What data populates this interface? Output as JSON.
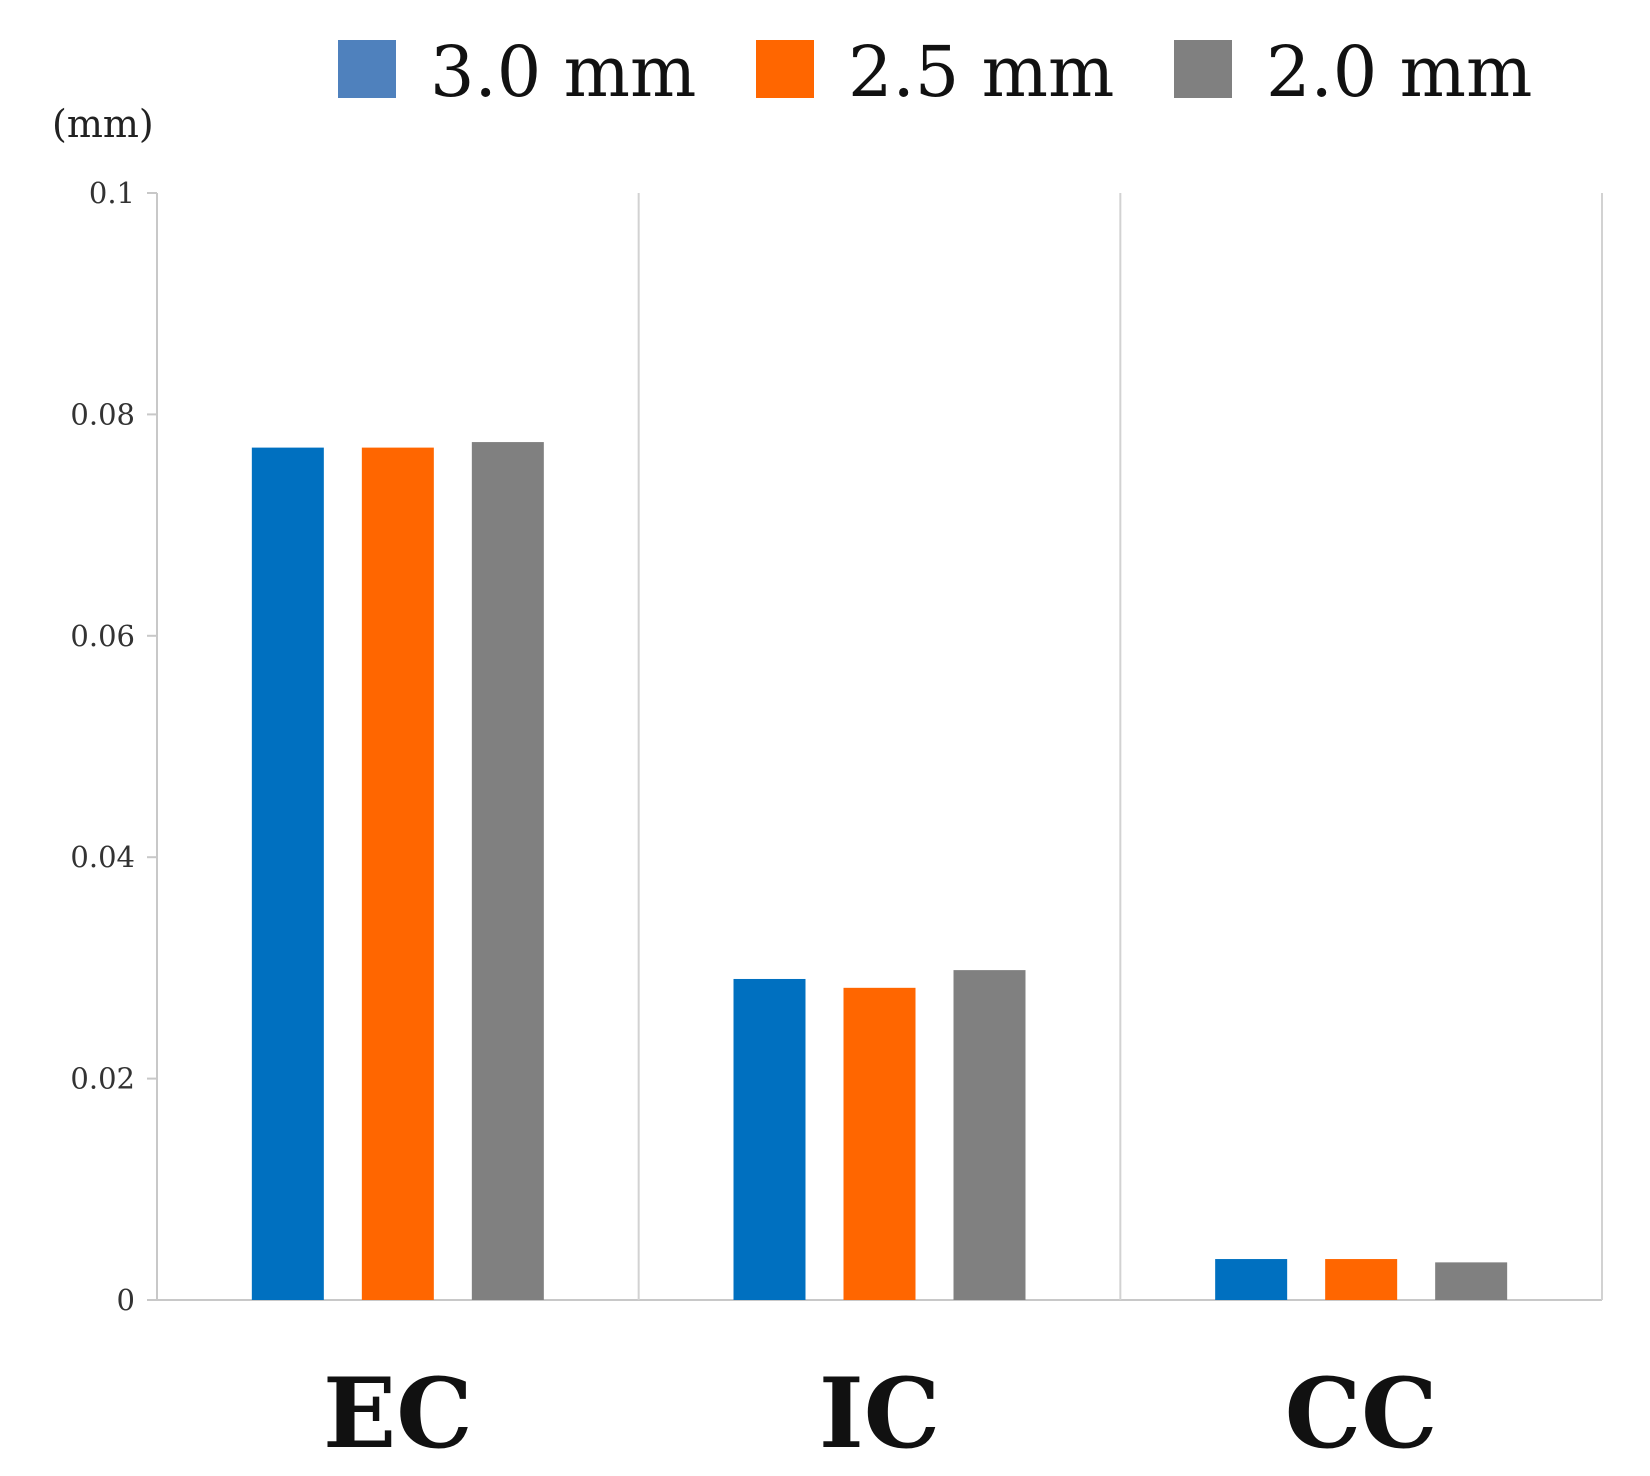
{
  "chart_data": {
    "type": "bar",
    "title": "",
    "xlabel": "",
    "ylabel": "(mm)",
    "ylim": [
      0,
      0.1
    ],
    "yticks": [
      0,
      0.02,
      0.04,
      0.06,
      0.08,
      0.1
    ],
    "ytick_labels": [
      "0",
      "0.02",
      "0.04",
      "0.06",
      "0.08",
      "0.1"
    ],
    "grid": false,
    "category_separators": true,
    "legend_position": "top",
    "categories": [
      "EC",
      "IC",
      "CC"
    ],
    "series": [
      {
        "name": "3.0 mm",
        "color": "#0070C0",
        "legend_color": "#4F81BD",
        "values": [
          0.077,
          0.029,
          0.0037
        ]
      },
      {
        "name": "2.5 mm",
        "color": "#FF6600",
        "legend_color": "#FF6600",
        "values": [
          0.077,
          0.0282,
          0.0037
        ]
      },
      {
        "name": "2.0 mm",
        "color": "#808080",
        "legend_color": "#808080",
        "values": [
          0.0775,
          0.0298,
          0.0034
        ]
      }
    ]
  }
}
